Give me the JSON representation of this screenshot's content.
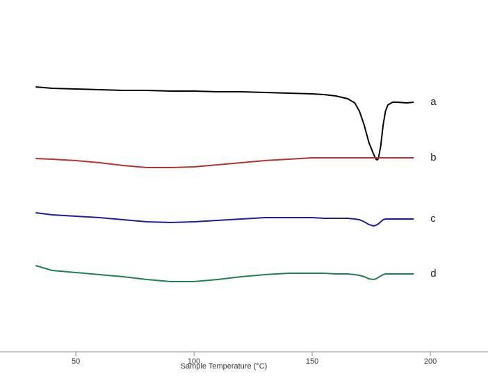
{
  "chart_data": {
    "type": "line",
    "x_label": "Sample Temperature (°C)",
    "x": [
      33,
      40,
      50,
      60,
      70,
      80,
      90,
      100,
      110,
      120,
      130,
      140,
      150,
      155,
      160,
      165,
      168,
      170,
      172,
      174,
      176,
      177,
      177.5,
      178,
      179,
      180,
      181,
      182,
      184,
      186,
      190,
      193
    ],
    "series": [
      {
        "name": "a",
        "color": "#000000",
        "values": [
          76.2,
          75.8,
          75.6,
          75.4,
          75.2,
          75.2,
          75,
          75,
          74.8,
          74.8,
          74.6,
          74.4,
          74.2,
          74,
          73.6,
          72.8,
          71.6,
          69.2,
          65.2,
          60.2,
          56.8,
          55.4,
          55.2,
          55.6,
          59.2,
          65.2,
          69.2,
          71,
          71.8,
          71.8,
          71.6,
          71.8
        ]
      },
      {
        "name": "b",
        "color": "#b5322e",
        "values": [
          55.6,
          55.4,
          55,
          54.4,
          53.6,
          53,
          53,
          53.2,
          53.8,
          54.4,
          55,
          55.4,
          55.8,
          55.8,
          55.8,
          55.8,
          55.8,
          55.8,
          55.8,
          55.8,
          55.8,
          55.8,
          55.8,
          55.8,
          55.8,
          55.8,
          55.8,
          55.8,
          55.8,
          55.8,
          55.8,
          55.8
        ]
      },
      {
        "name": "c",
        "color": "#1c1ca0",
        "values": [
          40,
          39.4,
          39,
          38.6,
          38,
          37.4,
          37.2,
          37.4,
          37.8,
          38.2,
          38.6,
          38.6,
          38.6,
          38.4,
          38.4,
          38.4,
          38.2,
          38,
          37.4,
          36.6,
          36.2,
          36.4,
          36.6,
          36.8,
          37.4,
          38,
          38.2,
          38.2,
          38.2,
          38.2,
          38.2,
          38.2
        ]
      },
      {
        "name": "d",
        "color": "#1f7f52",
        "values": [
          24.8,
          23.4,
          22.8,
          22.2,
          21.6,
          20.8,
          20.2,
          20.2,
          20.8,
          21.6,
          22.2,
          22.6,
          22.6,
          22.6,
          22.4,
          22.4,
          22.2,
          22,
          21.6,
          21,
          20.8,
          21,
          21.2,
          21.4,
          21.8,
          22.2,
          22.4,
          22.4,
          22.4,
          22.4,
          22.4,
          22.4
        ]
      }
    ],
    "xlim": [
      17.9,
      224.4
    ],
    "xticks": [
      50,
      100,
      150,
      200
    ],
    "ylim": [
      0,
      100
    ]
  }
}
